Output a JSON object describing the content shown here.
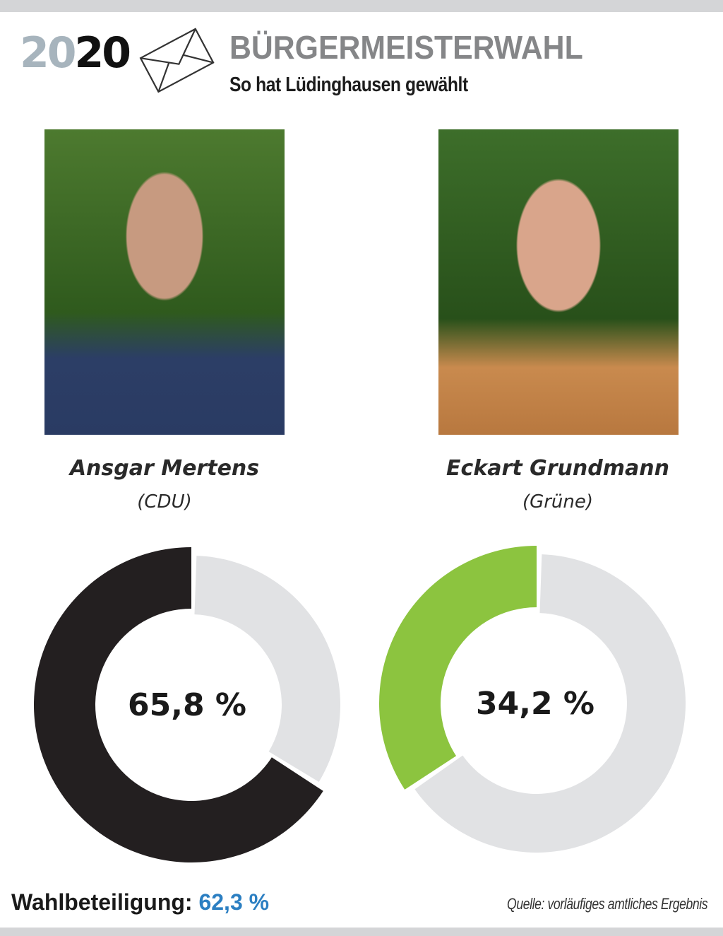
{
  "header": {
    "year_part1": "20",
    "year_part2": "20",
    "title": "BÜRGERMEISTERWAHL",
    "subtitle": "So hat Lüdinghausen gewählt",
    "icon": "envelope-icon"
  },
  "candidates": [
    {
      "name": "Ansgar Mertens",
      "party": "(CDU)",
      "percent_label": "65,8 %"
    },
    {
      "name": "Eckart Grundmann",
      "party": "(Grüne)",
      "percent_label": "34,2 %"
    }
  ],
  "chart_data": [
    {
      "type": "pie",
      "variant": "donut",
      "categories": [
        "Ansgar Mertens",
        "Rest"
      ],
      "values": [
        65.8,
        34.2
      ],
      "colors": [
        "#231f20",
        "#e1e2e4"
      ],
      "label": "65,8 %"
    },
    {
      "type": "pie",
      "variant": "donut",
      "categories": [
        "Eckart Grundmann",
        "Rest"
      ],
      "values": [
        34.2,
        65.8
      ],
      "colors": [
        "#8cc43f",
        "#e1e2e4"
      ],
      "label": "34,2 %"
    }
  ],
  "footer": {
    "turnout_label": "Wahlbeteiligung:",
    "turnout_value": "62,3 %",
    "turnout_color": "#2c7fc2",
    "source": "Quelle: vorläufiges amtliches Ergebnis"
  }
}
